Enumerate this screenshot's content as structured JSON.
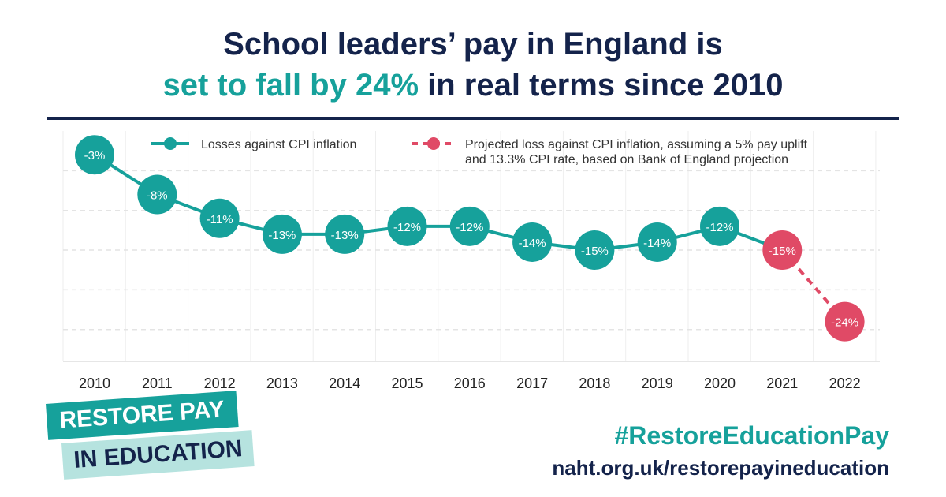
{
  "header": {
    "title_line1": "School leaders’ pay in England is",
    "title_accent": "set to fall by 24%",
    "title_rest": " in real terms since 2010"
  },
  "chart_data": {
    "type": "line",
    "x": [
      "2010",
      "2011",
      "2012",
      "2013",
      "2014",
      "2015",
      "2016",
      "2017",
      "2018",
      "2019",
      "2020",
      "2021",
      "2022"
    ],
    "series": [
      {
        "name": "Losses against CPI inflation",
        "style": "solid",
        "color": "#16a19b",
        "values": [
          -3,
          -8,
          -11,
          -13,
          -13,
          -12,
          -12,
          -14,
          -15,
          -14,
          -12,
          null,
          null
        ]
      },
      {
        "name_line1": "Projected loss against CPI inflation, assuming a 5% pay uplift",
        "name_line2": "and 13.3% CPI rate, based on Bank of England projection",
        "style": "dashed",
        "color": "#e04a66",
        "values": [
          null,
          null,
          null,
          null,
          null,
          null,
          null,
          null,
          null,
          null,
          null,
          -15,
          -24
        ]
      }
    ],
    "data_labels": [
      "-3%",
      "-8%",
      "-11%",
      "-13%",
      "-13%",
      "-12%",
      "-12%",
      "-14%",
      "-15%",
      "-14%",
      "-12%",
      "-15%",
      "-24%"
    ],
    "ylim": [
      -29,
      0
    ],
    "grid": true,
    "legend": "top"
  },
  "badge": {
    "line1": "RESTORE PAY",
    "line2": "IN EDUCATION"
  },
  "footer": {
    "hashtag": "#RestoreEducationPay",
    "url": "naht.org.uk/restorepayineducation"
  },
  "colors": {
    "navy": "#14234b",
    "teal": "#16a19b",
    "pink": "#e04a66",
    "light_teal": "#b6e3df"
  }
}
